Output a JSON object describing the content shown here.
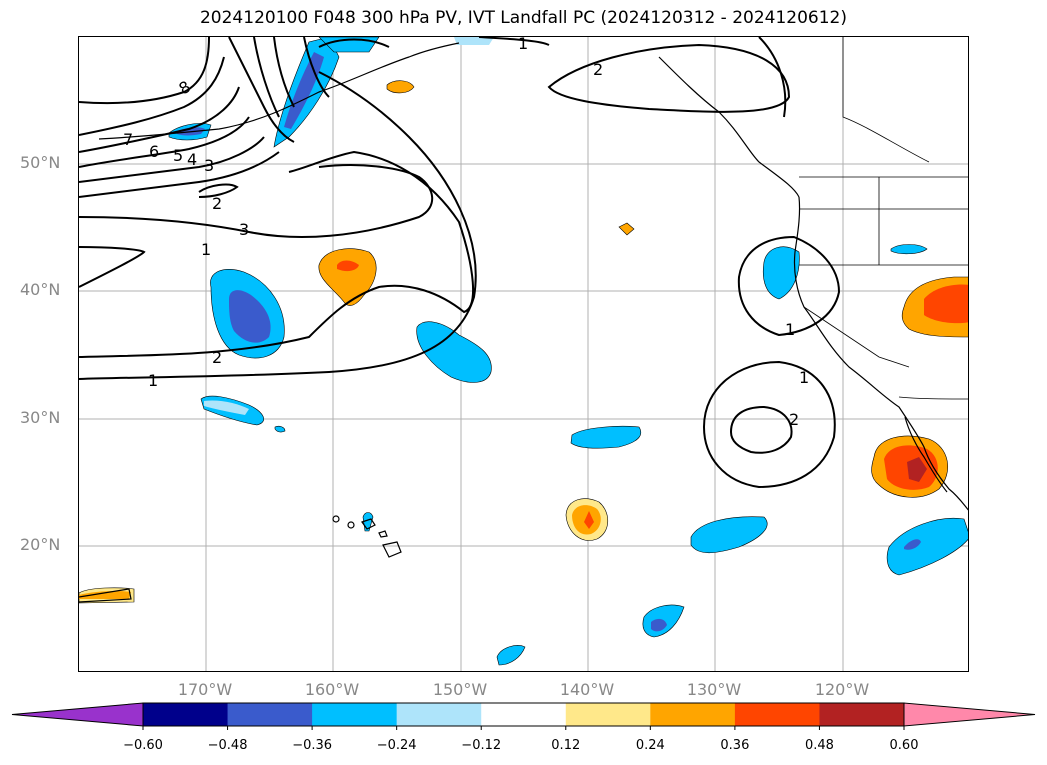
{
  "map": {
    "title": "2024120100 F048 300 hPa PV, IVT Landfall PC (2024120312 - 2024120612)",
    "lat_labels": [
      "50°N",
      "40°N",
      "30°N",
      "20°N"
    ],
    "lon_labels": [
      "170°W",
      "160°W",
      "150°W",
      "140°W",
      "130°W",
      "120°W"
    ],
    "extent": {
      "lon_min": -180,
      "lon_max": -110,
      "lat_min": 10,
      "lat_max": 60
    },
    "contour_labels": [
      "8",
      "7",
      "6",
      "5",
      "4",
      "3",
      "2",
      "3",
      "2",
      "1",
      "1",
      "2",
      "1",
      "1",
      "2",
      "1"
    ],
    "colorbar": {
      "ticks": [
        "−0.60",
        "−0.48",
        "−0.36",
        "−0.24",
        "−0.12",
        "0.12",
        "0.24",
        "0.36",
        "0.48",
        "0.60"
      ],
      "colors": [
        "#9932cc",
        "#00008b",
        "#3a5bcc",
        "#00bfff",
        "#aee4fa",
        "#ffffff",
        "#ffe88a",
        "#ffa500",
        "#ff4500",
        "#b22222",
        "#ff88aa"
      ]
    }
  }
}
